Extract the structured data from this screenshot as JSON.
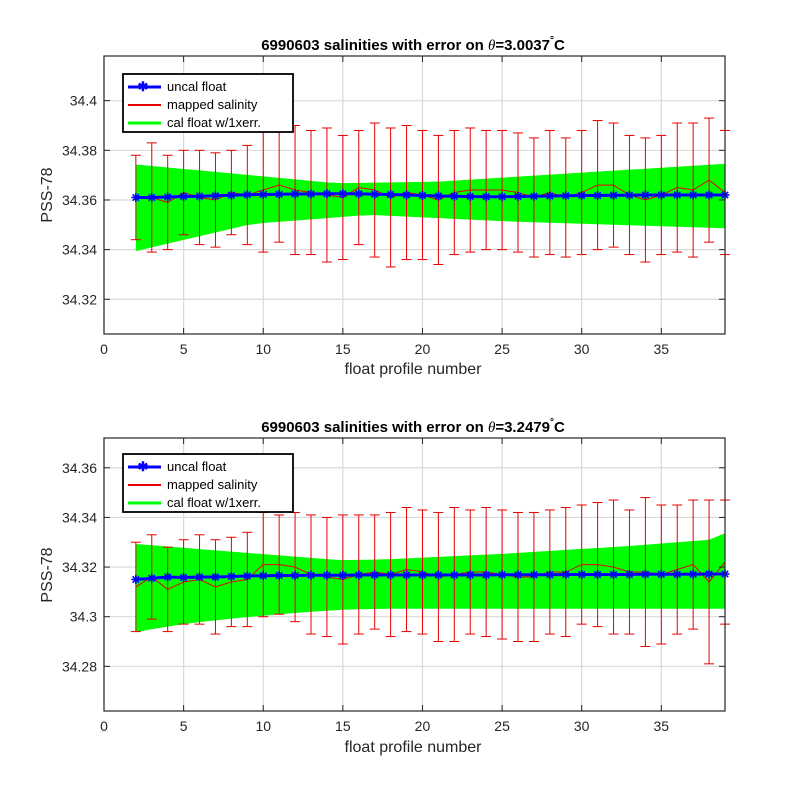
{
  "chart_data": [
    {
      "type": "line",
      "title_prefix": "6990603 salinities with error on ",
      "title_theta": "θ",
      "title_value": "=3.0037",
      "title_degree": "°",
      "title_unit": "C",
      "xlabel": "float profile number",
      "ylabel": "PSS-78",
      "xlim": [
        0,
        39
      ],
      "ylim": [
        34.306,
        34.418
      ],
      "xticks": [
        0,
        5,
        10,
        15,
        20,
        25,
        30,
        35
      ],
      "yticks": [
        34.32,
        34.34,
        34.36,
        34.38,
        34.4
      ],
      "ytick_labels": [
        "34.32",
        "34.34",
        "34.36",
        "34.38",
        "34.4"
      ],
      "grid": true,
      "legend_location": "top-left",
      "legend": [
        "uncal float",
        "mapped salinity",
        "cal float w/1xerr."
      ],
      "x": [
        2,
        3,
        4,
        5,
        6,
        7,
        8,
        9,
        10,
        11,
        12,
        13,
        14,
        15,
        16,
        17,
        18,
        19,
        20,
        21,
        22,
        23,
        24,
        25,
        26,
        27,
        28,
        29,
        30,
        31,
        32,
        33,
        34,
        35,
        36,
        37,
        38,
        39
      ],
      "uncal_float": [
        34.361,
        34.361,
        34.3612,
        34.3614,
        34.3615,
        34.3617,
        34.3619,
        34.3621,
        34.3622,
        34.3623,
        34.3624,
        34.3624,
        34.3625,
        34.3625,
        34.3625,
        34.3623,
        34.3622,
        34.362,
        34.3618,
        34.3616,
        34.3615,
        34.3614,
        34.3613,
        34.3613,
        34.3614,
        34.3615,
        34.3616,
        34.3617,
        34.3618,
        34.3618,
        34.3619,
        34.3619,
        34.362,
        34.362,
        34.362,
        34.362,
        34.362,
        34.362
      ],
      "mapped_salinity": [
        34.361,
        34.361,
        34.359,
        34.363,
        34.361,
        34.36,
        34.363,
        34.362,
        34.364,
        34.366,
        34.364,
        34.363,
        34.362,
        34.361,
        34.365,
        34.364,
        34.361,
        34.363,
        34.362,
        34.36,
        34.363,
        34.364,
        34.364,
        34.364,
        34.363,
        34.361,
        34.363,
        34.361,
        34.363,
        34.366,
        34.366,
        34.362,
        34.36,
        34.362,
        34.365,
        34.364,
        34.368,
        34.363
      ],
      "mapped_error": [
        0.017,
        0.022,
        0.019,
        0.017,
        0.019,
        0.019,
        0.017,
        0.02,
        0.025,
        0.023,
        0.026,
        0.025,
        0.027,
        0.025,
        0.023,
        0.027,
        0.028,
        0.027,
        0.026,
        0.026,
        0.025,
        0.025,
        0.024,
        0.024,
        0.024,
        0.024,
        0.025,
        0.024,
        0.025,
        0.026,
        0.025,
        0.024,
        0.025,
        0.024,
        0.026,
        0.027,
        0.025,
        0.025
      ],
      "cal_float_upper": [
        34.3743,
        34.3737,
        34.3731,
        34.3725,
        34.3719,
        34.3713,
        34.3707,
        34.3701,
        34.3695,
        34.3689,
        34.3683,
        34.3677,
        34.3671,
        34.3668,
        34.3669,
        34.367,
        34.3671,
        34.3672,
        34.3673,
        34.3674,
        34.3678,
        34.3682,
        34.3686,
        34.369,
        34.3694,
        34.3698,
        34.3702,
        34.3706,
        34.371,
        34.3714,
        34.3718,
        34.3722,
        34.3726,
        34.373,
        34.3734,
        34.3738,
        34.3742,
        34.3746
      ],
      "cal_float_lower": [
        34.3394,
        34.3409,
        34.3424,
        34.3439,
        34.3454,
        34.3469,
        34.3484,
        34.3499,
        34.3507,
        34.3512,
        34.3517,
        34.3522,
        34.3527,
        34.3532,
        34.3537,
        34.3539,
        34.3536,
        34.3533,
        34.353,
        34.3527,
        34.3524,
        34.3521,
        34.3518,
        34.3515,
        34.3512,
        34.351,
        34.3508,
        34.3506,
        34.3504,
        34.3502,
        34.35,
        34.3498,
        34.3496,
        34.3494,
        34.3492,
        34.349,
        34.3488,
        34.3486
      ]
    },
    {
      "type": "line",
      "title_prefix": "6990603 salinities with error on ",
      "title_theta": "θ",
      "title_value": "=3.2479",
      "title_degree": "°",
      "title_unit": "C",
      "xlabel": "float profile number",
      "ylabel": "PSS-78",
      "xlim": [
        0,
        39
      ],
      "ylim": [
        34.262,
        34.372
      ],
      "xticks": [
        0,
        5,
        10,
        15,
        20,
        25,
        30,
        35
      ],
      "yticks": [
        34.28,
        34.3,
        34.32,
        34.34,
        34.36
      ],
      "ytick_labels": [
        "34.28",
        "34.3",
        "34.32",
        "34.34",
        "34.36"
      ],
      "grid": true,
      "legend_location": "top-left",
      "legend": [
        "uncal float",
        "mapped salinity",
        "cal float w/1xerr."
      ],
      "x": [
        2,
        3,
        4,
        5,
        6,
        7,
        8,
        9,
        10,
        11,
        12,
        13,
        14,
        15,
        16,
        17,
        18,
        19,
        20,
        21,
        22,
        23,
        24,
        25,
        26,
        27,
        28,
        29,
        30,
        31,
        32,
        33,
        34,
        35,
        36,
        37,
        38,
        39
      ],
      "uncal_float": [
        34.315,
        34.3155,
        34.316,
        34.3158,
        34.316,
        34.316,
        34.3162,
        34.3164,
        34.3165,
        34.3166,
        34.3166,
        34.3167,
        34.3167,
        34.3167,
        34.3168,
        34.3168,
        34.3168,
        34.3168,
        34.3168,
        34.3168,
        34.3168,
        34.3168,
        34.3168,
        34.3169,
        34.3169,
        34.3169,
        34.3169,
        34.317,
        34.317,
        34.317,
        34.317,
        34.317,
        34.3171,
        34.3171,
        34.3171,
        34.3171,
        34.3172,
        34.3172
      ],
      "mapped_salinity": [
        34.312,
        34.316,
        34.311,
        34.314,
        34.315,
        34.312,
        34.314,
        34.315,
        34.321,
        34.321,
        34.32,
        34.317,
        34.316,
        34.315,
        34.317,
        34.318,
        34.317,
        34.319,
        34.318,
        34.316,
        34.317,
        34.318,
        34.318,
        34.317,
        34.316,
        34.316,
        34.318,
        34.318,
        34.321,
        34.321,
        34.32,
        34.318,
        34.318,
        34.317,
        34.319,
        34.321,
        34.314,
        34.322
      ],
      "mapped_error": [
        0.018,
        0.017,
        0.017,
        0.017,
        0.018,
        0.019,
        0.018,
        0.019,
        0.021,
        0.02,
        0.022,
        0.024,
        0.024,
        0.026,
        0.024,
        0.023,
        0.025,
        0.025,
        0.025,
        0.026,
        0.027,
        0.025,
        0.026,
        0.026,
        0.026,
        0.026,
        0.025,
        0.026,
        0.024,
        0.025,
        0.027,
        0.025,
        0.03,
        0.028,
        0.026,
        0.026,
        0.033,
        0.025
      ],
      "cal_float_upper": [
        34.3293,
        34.3288,
        34.3283,
        34.3278,
        34.3272,
        34.3267,
        34.3262,
        34.3257,
        34.3252,
        34.3247,
        34.3242,
        34.3237,
        34.3232,
        34.3228,
        34.3229,
        34.323,
        34.3232,
        34.3235,
        34.3238,
        34.3241,
        34.3244,
        34.3247,
        34.325,
        34.3253,
        34.3257,
        34.3261,
        34.3265,
        34.3269,
        34.3273,
        34.3277,
        34.3281,
        34.3285,
        34.329,
        34.3295,
        34.33,
        34.3305,
        34.331,
        34.3336
      ],
      "cal_float_lower": [
        34.2937,
        34.295,
        34.296,
        34.297,
        34.2978,
        34.2985,
        34.2992,
        34.2998,
        34.3004,
        34.301,
        34.3015,
        34.302,
        34.3024,
        34.3028,
        34.303,
        34.3031,
        34.3032,
        34.3032,
        34.3032,
        34.3032,
        34.3032,
        34.3032,
        34.3032,
        34.3032,
        34.3032,
        34.3032,
        34.3032,
        34.3032,
        34.3032,
        34.3032,
        34.3032,
        34.3032,
        34.3032,
        34.3032,
        34.3032,
        34.3032,
        34.3032,
        34.3032
      ]
    }
  ],
  "colors": {
    "uncal_float": "#0000ff",
    "mapped_salinity": "#e60000",
    "cal_float": "#00ff00",
    "grid": "#d9d9d9",
    "axes": "#262626"
  }
}
